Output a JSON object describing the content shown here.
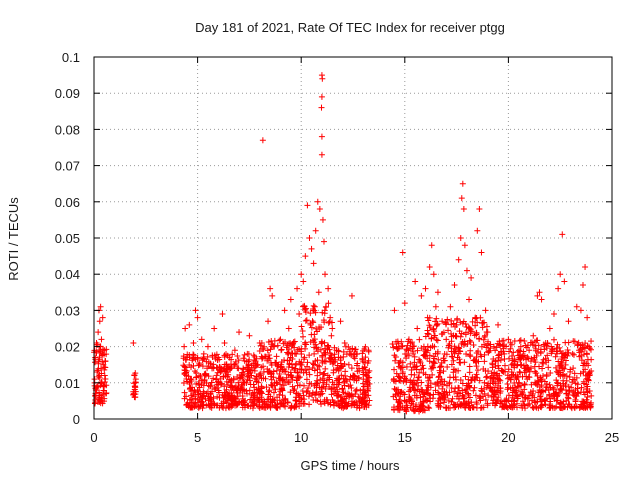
{
  "chart_data": {
    "type": "scatter",
    "title": "Day 181 of 2021, Rate Of TEC Index for receiver ptgg",
    "xlabel": "GPS time / hours",
    "ylabel": "ROTI / TECUs",
    "xlim": [
      0,
      25
    ],
    "ylim": [
      0,
      0.1
    ],
    "x_ticks": [
      0,
      5,
      10,
      15,
      20,
      25
    ],
    "x_tick_labels": [
      "0",
      "5",
      "10",
      "15",
      "20",
      "25"
    ],
    "y_ticks": [
      0,
      0.01,
      0.02,
      0.03,
      0.04,
      0.05,
      0.06,
      0.07,
      0.08,
      0.09,
      0.1
    ],
    "y_tick_labels": [
      "0",
      "0.01",
      "0.02",
      "0.03",
      "0.04",
      "0.05",
      "0.06",
      "0.07",
      "0.08",
      "0.09",
      "0.1"
    ],
    "grid": true,
    "legend": "none",
    "marker": "+",
    "color": "#ff0000",
    "series": [
      {
        "points": [
          [
            0.03,
            0.011
          ],
          [
            0.06,
            0.017
          ],
          [
            0.09,
            0.008
          ],
          [
            0.12,
            0.021
          ],
          [
            0.15,
            0.013
          ],
          [
            0.18,
            0.009
          ],
          [
            0.2,
            0.024
          ],
          [
            0.22,
            0.016
          ],
          [
            0.24,
            0.03
          ],
          [
            0.26,
            0.012
          ],
          [
            0.28,
            0.027
          ],
          [
            0.3,
            0.02
          ],
          [
            0.32,
            0.031
          ],
          [
            0.34,
            0.014
          ],
          [
            0.36,
            0.022
          ],
          [
            0.38,
            0.01
          ],
          [
            0.4,
            0.018
          ],
          [
            0.42,
            0.028
          ],
          [
            0.45,
            0.015
          ],
          [
            0.48,
            0.009
          ],
          [
            0.5,
            0.019
          ],
          [
            0.52,
            0.012
          ],
          [
            0.55,
            0.016
          ],
          [
            0.58,
            0.007
          ],
          [
            1.9,
            0.021
          ],
          [
            1.95,
            0.012
          ],
          [
            2.0,
            0.01
          ],
          [
            1.92,
            0.007
          ],
          [
            1.97,
            0.009
          ],
          [
            4.35,
            0.02
          ],
          [
            4.4,
            0.025
          ],
          [
            4.45,
            0.012
          ],
          [
            4.5,
            0.017
          ],
          [
            4.6,
            0.026
          ],
          [
            4.7,
            0.011
          ],
          [
            4.8,
            0.021
          ],
          [
            4.85,
            0.008
          ],
          [
            4.9,
            0.03
          ],
          [
            5.0,
            0.028
          ],
          [
            5.1,
            0.015
          ],
          [
            5.2,
            0.022
          ],
          [
            5.3,
            0.018
          ],
          [
            5.4,
            0.012
          ],
          [
            5.5,
            0.02
          ],
          [
            5.6,
            0.009
          ],
          [
            5.7,
            0.014
          ],
          [
            5.8,
            0.025
          ],
          [
            5.9,
            0.011
          ],
          [
            6.0,
            0.017
          ],
          [
            6.1,
            0.013
          ],
          [
            6.2,
            0.029
          ],
          [
            6.3,
            0.021
          ],
          [
            6.4,
            0.015
          ],
          [
            6.6,
            0.01
          ],
          [
            6.8,
            0.019
          ],
          [
            7.0,
            0.024
          ],
          [
            7.2,
            0.014
          ],
          [
            7.4,
            0.018
          ],
          [
            7.5,
            0.023
          ],
          [
            7.6,
            0.012
          ],
          [
            7.8,
            0.016
          ],
          [
            8.0,
            0.021
          ],
          [
            8.15,
            0.077
          ],
          [
            8.2,
            0.013
          ],
          [
            8.4,
            0.027
          ],
          [
            8.5,
            0.036
          ],
          [
            8.6,
            0.034
          ],
          [
            8.7,
            0.02
          ],
          [
            8.9,
            0.015
          ],
          [
            9.0,
            0.022
          ],
          [
            9.2,
            0.03
          ],
          [
            9.4,
            0.025
          ],
          [
            9.5,
            0.033
          ],
          [
            9.7,
            0.018
          ],
          [
            9.8,
            0.036
          ],
          [
            9.9,
            0.029
          ],
          [
            10.0,
            0.04
          ],
          [
            10.1,
            0.038
          ],
          [
            10.2,
            0.045
          ],
          [
            10.3,
            0.059
          ],
          [
            10.4,
            0.05
          ],
          [
            10.45,
            0.026
          ],
          [
            10.5,
            0.047
          ],
          [
            10.6,
            0.043
          ],
          [
            10.7,
            0.052
          ],
          [
            10.8,
            0.06
          ],
          [
            10.85,
            0.035
          ],
          [
            10.9,
            0.058
          ],
          [
            11.0,
            0.095
          ],
          [
            11.02,
            0.094
          ],
          [
            11.0,
            0.089
          ],
          [
            10.98,
            0.086
          ],
          [
            11.0,
            0.078
          ],
          [
            11.0,
            0.073
          ],
          [
            11.05,
            0.055
          ],
          [
            11.1,
            0.049
          ],
          [
            11.15,
            0.04
          ],
          [
            11.2,
            0.031
          ],
          [
            11.3,
            0.036
          ],
          [
            11.4,
            0.028
          ],
          [
            11.5,
            0.025
          ],
          [
            11.7,
            0.019
          ],
          [
            11.9,
            0.027
          ],
          [
            12.1,
            0.021
          ],
          [
            12.3,
            0.015
          ],
          [
            12.45,
            0.034
          ],
          [
            12.5,
            0.012
          ],
          [
            12.7,
            0.018
          ],
          [
            13.0,
            0.011
          ],
          [
            13.2,
            0.008
          ],
          [
            14.5,
            0.03
          ],
          [
            14.6,
            0.02
          ],
          [
            14.8,
            0.016
          ],
          [
            14.9,
            0.046
          ],
          [
            15.0,
            0.032
          ],
          [
            15.2,
            0.022
          ],
          [
            15.4,
            0.018
          ],
          [
            15.5,
            0.038
          ],
          [
            15.6,
            0.025
          ],
          [
            15.8,
            0.034
          ],
          [
            15.9,
            0.014
          ],
          [
            16.0,
            0.036
          ],
          [
            16.1,
            0.028
          ],
          [
            16.2,
            0.042
          ],
          [
            16.3,
            0.048
          ],
          [
            16.4,
            0.04
          ],
          [
            16.5,
            0.031
          ],
          [
            16.6,
            0.035
          ],
          [
            16.8,
            0.027
          ],
          [
            17.0,
            0.022
          ],
          [
            17.2,
            0.031
          ],
          [
            17.4,
            0.037
          ],
          [
            17.5,
            0.026
          ],
          [
            17.6,
            0.044
          ],
          [
            17.7,
            0.05
          ],
          [
            17.75,
            0.061
          ],
          [
            17.8,
            0.065
          ],
          [
            17.85,
            0.058
          ],
          [
            17.9,
            0.048
          ],
          [
            18.0,
            0.041
          ],
          [
            18.1,
            0.033
          ],
          [
            18.2,
            0.039
          ],
          [
            18.4,
            0.028
          ],
          [
            18.5,
            0.052
          ],
          [
            18.6,
            0.058
          ],
          [
            18.7,
            0.046
          ],
          [
            18.9,
            0.03
          ],
          [
            19.0,
            0.024
          ],
          [
            19.3,
            0.02
          ],
          [
            19.5,
            0.026
          ],
          [
            19.8,
            0.018
          ],
          [
            20.0,
            0.022
          ],
          [
            20.3,
            0.016
          ],
          [
            20.6,
            0.02
          ],
          [
            20.8,
            0.014
          ],
          [
            21.0,
            0.019
          ],
          [
            21.2,
            0.023
          ],
          [
            21.4,
            0.034
          ],
          [
            21.5,
            0.035
          ],
          [
            21.6,
            0.033
          ],
          [
            21.8,
            0.021
          ],
          [
            22.0,
            0.025
          ],
          [
            22.2,
            0.029
          ],
          [
            22.4,
            0.036
          ],
          [
            22.5,
            0.04
          ],
          [
            22.6,
            0.051
          ],
          [
            22.7,
            0.038
          ],
          [
            22.9,
            0.027
          ],
          [
            23.1,
            0.018
          ],
          [
            23.3,
            0.031
          ],
          [
            23.5,
            0.03
          ],
          [
            23.6,
            0.037
          ],
          [
            23.7,
            0.042
          ],
          [
            23.8,
            0.028
          ],
          [
            23.9,
            0.012
          ]
        ],
        "band_segments": [
          [
            0.0,
            0.6,
            0.004,
            0.021
          ],
          [
            1.88,
            2.02,
            0.006,
            0.013
          ],
          [
            4.3,
            8.0,
            0.003,
            0.018
          ],
          [
            8.0,
            10.0,
            0.003,
            0.022
          ],
          [
            10.0,
            11.5,
            0.004,
            0.032
          ],
          [
            11.5,
            13.3,
            0.003,
            0.02
          ],
          [
            14.4,
            16.0,
            0.002,
            0.022
          ],
          [
            16.0,
            19.0,
            0.003,
            0.028
          ],
          [
            19.0,
            24.0,
            0.003,
            0.022
          ]
        ]
      }
    ]
  }
}
